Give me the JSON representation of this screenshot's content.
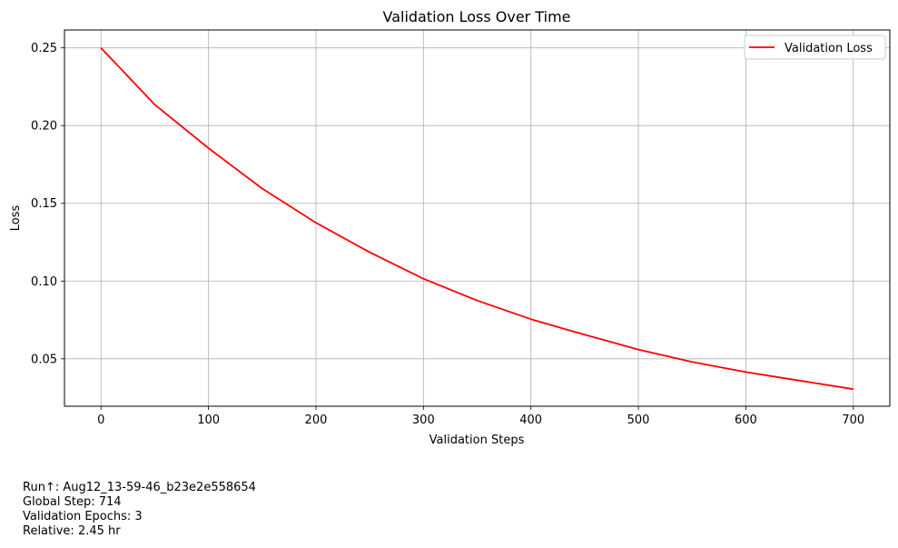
{
  "chart_data": {
    "type": "line",
    "title": "Validation Loss Over Time",
    "xlabel": "Validation Steps",
    "ylabel": "Loss",
    "xlim": [
      -34,
      734
    ],
    "ylim": [
      0.0195,
      0.2615
    ],
    "xticks": [
      0,
      100,
      200,
      300,
      400,
      500,
      600,
      700
    ],
    "yticks": [
      0.05,
      0.1,
      0.15,
      0.2,
      0.25
    ],
    "ytick_labels": [
      "0.05",
      "0.10",
      "0.15",
      "0.20",
      "0.25"
    ],
    "grid": true,
    "legend_position": "top-right",
    "series": [
      {
        "name": "Validation Loss",
        "color": "#ff0000",
        "x": [
          0,
          50,
          100,
          150,
          200,
          250,
          300,
          350,
          400,
          450,
          500,
          550,
          600,
          650,
          700
        ],
        "y": [
          0.25,
          0.2135,
          0.1855,
          0.1595,
          0.1375,
          0.1185,
          0.1015,
          0.0875,
          0.0755,
          0.0655,
          0.056,
          0.048,
          0.0415,
          0.036,
          0.0305
        ]
      }
    ]
  },
  "info": {
    "run": "Run↑: Aug12_13-59-46_b23e2e558654",
    "global_step": "Global Step: 714",
    "validation_epochs": "Validation Epochs: 3",
    "relative": "Relative: 2.45 hr"
  }
}
